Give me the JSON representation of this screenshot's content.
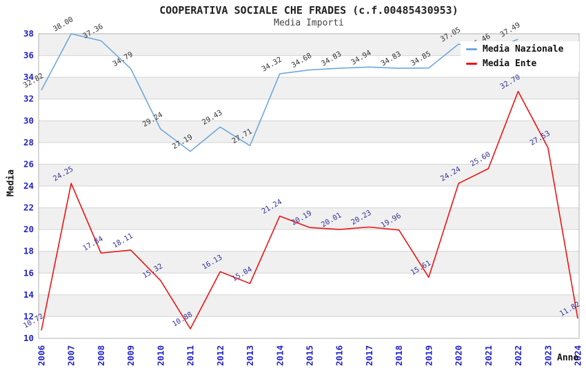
{
  "title": "COOPERATIVA SOCIALE CHE FRADES (c.f.00485430953)",
  "subtitle": "Media Importi",
  "axes": {
    "y_label": "Media",
    "x_label": "Anno"
  },
  "legend": {
    "items": [
      {
        "label": "Media Nazionale",
        "color": "#6EA6DF"
      },
      {
        "label": "Media Ente",
        "color": "#EE1111"
      }
    ]
  },
  "colors": {
    "band": "#F0F0F0",
    "grid": "#D4D4D4",
    "plot_border": "#B0B0B0",
    "tick_label": "#2222CC",
    "nazionale_line": "#6EA6DF",
    "nazionale_point_label": "#333333",
    "ente_line": "#EE1111",
    "ente_point_label": "#333399"
  },
  "chart_data": {
    "type": "line",
    "title": "COOPERATIVA SOCIALE CHE FRADES (c.f.00485430953)",
    "subtitle": "Media Importi",
    "xlabel": "Anno",
    "ylabel": "Media",
    "ylim": [
      10,
      38
    ],
    "ytick_step": 2,
    "grid": true,
    "banded_background": true,
    "legend_position": "top-right",
    "point_labels_visible": true,
    "categories": [
      "2006",
      "2007",
      "2008",
      "2009",
      "2010",
      "2011",
      "2012",
      "2013",
      "2014",
      "2015",
      "2016",
      "2017",
      "2018",
      "2019",
      "2020",
      "2021",
      "2022",
      "2023",
      "2024"
    ],
    "series": [
      {
        "name": "Media Nazionale",
        "color": "#6EA6DF",
        "label_color": "#333333",
        "values": [
          32.82,
          38.0,
          37.36,
          34.79,
          29.24,
          27.19,
          29.43,
          27.71,
          34.32,
          34.68,
          34.83,
          34.94,
          34.83,
          34.85,
          37.05,
          36.46,
          37.49,
          null,
          null
        ]
      },
      {
        "name": "Media Ente",
        "color": "#EE1111",
        "label_color": "#333399",
        "values": [
          10.72,
          24.25,
          17.84,
          18.11,
          15.32,
          10.88,
          16.13,
          15.04,
          21.24,
          20.19,
          20.01,
          20.23,
          19.96,
          15.61,
          24.24,
          25.6,
          32.7,
          27.53,
          11.82
        ]
      }
    ]
  }
}
